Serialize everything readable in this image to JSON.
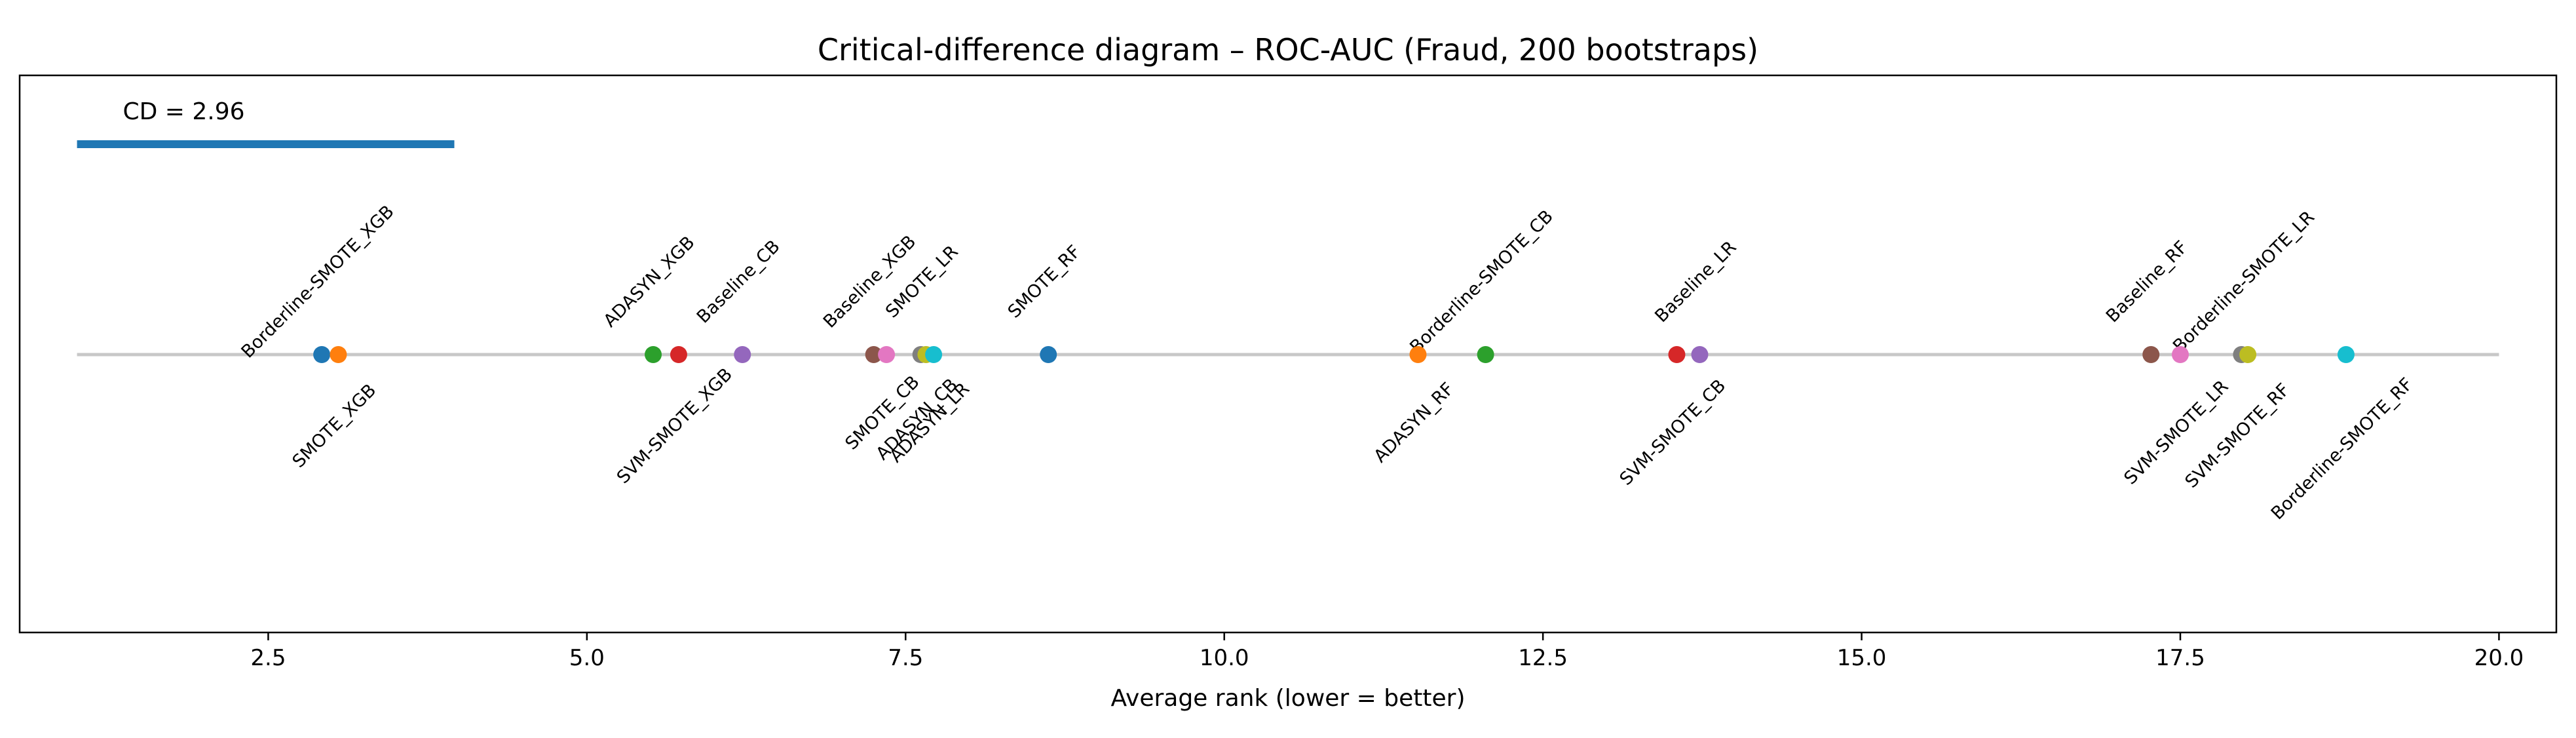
{
  "chart_data": {
    "type": "scatter",
    "title": "Critical-difference diagram – ROC-AUC (Fraud, 200 bootstraps)",
    "xlabel": "Average rank (lower = better)",
    "xlim": [
      0.55,
      20.45
    ],
    "xticks": [
      2.5,
      5.0,
      7.5,
      10.0,
      12.5,
      15.0,
      17.5,
      20.0
    ],
    "xtick_labels": [
      "2.5",
      "5.0",
      "7.5",
      "10.0",
      "12.5",
      "15.0",
      "17.5",
      "20.0"
    ],
    "grid": false,
    "rank_line": [
      1,
      20
    ],
    "cd": {
      "label": "CD = 2.96",
      "value": 2.96,
      "start": 1.0,
      "color": "#1f77b4"
    },
    "methods": [
      {
        "name": "Borderline-SMOTE_XGB",
        "rank": 2.92,
        "color": "#1f77b4",
        "side": "above"
      },
      {
        "name": "SMOTE_XGB",
        "rank": 3.05,
        "color": "#ff7f0e",
        "side": "below"
      },
      {
        "name": "ADASYN_XGB",
        "rank": 5.52,
        "color": "#2ca02c",
        "side": "above"
      },
      {
        "name": "SVM-SMOTE_XGB",
        "rank": 5.72,
        "color": "#d62728",
        "side": "below"
      },
      {
        "name": "Baseline_CB",
        "rank": 6.22,
        "color": "#9467bd",
        "side": "above"
      },
      {
        "name": "Baseline_XGB",
        "rank": 7.25,
        "color": "#8c564b",
        "side": "above"
      },
      {
        "name": "SMOTE_CB",
        "rank": 7.35,
        "color": "#e377c2",
        "side": "below"
      },
      {
        "name": "ADASYN_CB",
        "rank": 7.62,
        "color": "#7f7f7f",
        "side": "below"
      },
      {
        "name": "SMOTE_LR",
        "rank": 7.66,
        "color": "#bcbd22",
        "side": "above"
      },
      {
        "name": "ADASYN_LR",
        "rank": 7.72,
        "color": "#17becf",
        "side": "below"
      },
      {
        "name": "SMOTE_RF",
        "rank": 8.62,
        "color": "#1f77b4",
        "side": "above"
      },
      {
        "name": "ADASYN_RF",
        "rank": 11.52,
        "color": "#ff7f0e",
        "side": "below"
      },
      {
        "name": "Borderline-SMOTE_CB",
        "rank": 12.05,
        "color": "#2ca02c",
        "side": "above"
      },
      {
        "name": "SVM-SMOTE_CB",
        "rank": 13.55,
        "color": "#d62728",
        "side": "below"
      },
      {
        "name": "Baseline_LR",
        "rank": 13.73,
        "color": "#9467bd",
        "side": "above"
      },
      {
        "name": "Baseline_RF",
        "rank": 17.27,
        "color": "#8c564b",
        "side": "above"
      },
      {
        "name": "SVM-SMOTE_LR",
        "rank": 17.5,
        "color": "#e377c2",
        "side": "below"
      },
      {
        "name": "SVM-SMOTE_RF",
        "rank": 17.98,
        "color": "#7f7f7f",
        "side": "below"
      },
      {
        "name": "Borderline-SMOTE_LR",
        "rank": 18.03,
        "color": "#bcbd22",
        "side": "above"
      },
      {
        "name": "Borderline-SMOTE_RF",
        "rank": 18.8,
        "color": "#17becf",
        "side": "below"
      }
    ]
  }
}
